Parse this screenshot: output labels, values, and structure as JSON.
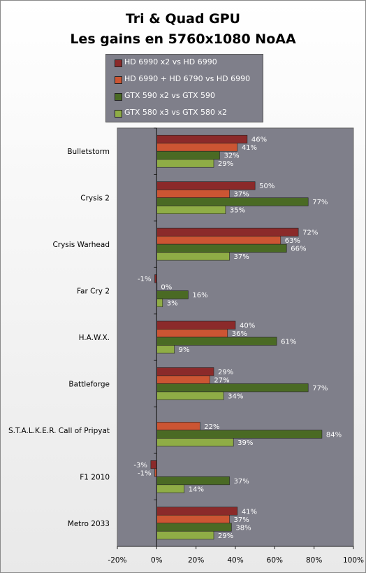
{
  "chart_data": {
    "type": "bar",
    "orientation": "horizontal",
    "title": "Tri & Quad GPU",
    "subtitle": "Les gains en 5760x1080 NoAA",
    "categories": [
      "Bulletstorm",
      "Crysis 2",
      "Crysis Warhead",
      "Far Cry 2",
      "H.A.W.X.",
      "Battleforge",
      "S.T.A.L.K.E.R.  Call of Pripyat",
      "F1 2010",
      "Metro 2033"
    ],
    "series": [
      {
        "name": "HD 6990  x2 vs HD 6990",
        "color": "#8b2a2a",
        "values": [
          46,
          50,
          72,
          -1,
          40,
          29,
          null,
          -3,
          41
        ],
        "labels": [
          "46%",
          "50%",
          "72%",
          "-1%",
          "40%",
          "29%",
          null,
          "-3%",
          "41%"
        ]
      },
      {
        "name": "HD 6990  + HD 6790  vs HD 6990",
        "color": "#cc5533",
        "values": [
          41,
          37,
          63,
          0,
          36,
          27,
          22,
          -1,
          37
        ],
        "labels": [
          "41%",
          "37%",
          "63%",
          "0%",
          "36%",
          "27%",
          "22%",
          "-1%",
          "37%"
        ]
      },
      {
        "name": "GTX 590 x2 vs GTX 590",
        "color": "#4a6a24",
        "values": [
          32,
          77,
          66,
          16,
          61,
          77,
          84,
          37,
          38
        ],
        "labels": [
          "32%",
          "77%",
          "66%",
          "16%",
          "61%",
          "77%",
          "84%",
          "37%",
          "38%"
        ]
      },
      {
        "name": "GTX 580 x3 vs GTX 580  x2",
        "color": "#8fad46",
        "values": [
          29,
          35,
          37,
          3,
          9,
          34,
          39,
          14,
          29
        ],
        "labels": [
          "29%",
          "35%",
          "37%",
          "3%",
          "9%",
          "34%",
          "39%",
          "14%",
          "29%"
        ]
      }
    ],
    "xlim": [
      -20,
      100
    ],
    "xticks": [
      "-20%",
      "0%",
      "20%",
      "40%",
      "60%",
      "80%",
      "100%"
    ],
    "grid": false,
    "legend_position": "top",
    "plot_background": "#7f7f8a"
  }
}
